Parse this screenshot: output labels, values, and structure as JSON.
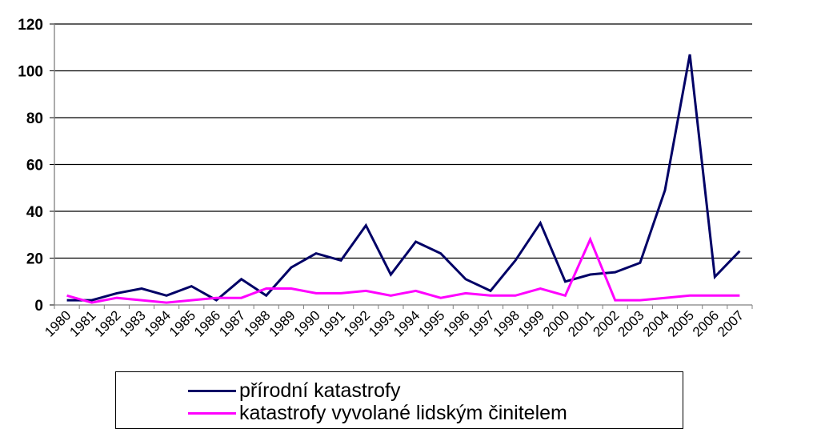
{
  "chart_data": {
    "type": "line",
    "title": "",
    "xlabel": "",
    "ylabel": "",
    "categories": [
      "1980",
      "1981",
      "1982",
      "1983",
      "1984",
      "1985",
      "1986",
      "1987",
      "1988",
      "1989",
      "1990",
      "1991",
      "1992",
      "1993",
      "1994",
      "1995",
      "1996",
      "1997",
      "1998",
      "1999",
      "2000",
      "2001",
      "2002",
      "2003",
      "2004",
      "2005",
      "2006",
      "2007"
    ],
    "ylim": [
      0,
      120
    ],
    "yticks": [
      "0",
      "20",
      "40",
      "60",
      "80",
      "100",
      "120"
    ],
    "grid": true,
    "legend_position": "bottom",
    "series": [
      {
        "name": "přírodní katastrofy",
        "color": "#000066",
        "values": [
          2,
          2,
          5,
          7,
          4,
          8,
          2,
          11,
          4,
          16,
          22,
          19,
          34,
          13,
          27,
          22,
          11,
          6,
          19,
          35,
          10,
          13,
          14,
          18,
          49,
          107,
          12,
          23
        ]
      },
      {
        "name": "katastrofy vyvolané lidským činitelem",
        "color": "#ff00ff",
        "values": [
          4,
          1,
          3,
          2,
          1,
          2,
          3,
          3,
          7,
          7,
          5,
          5,
          6,
          4,
          6,
          3,
          5,
          4,
          4,
          7,
          4,
          28,
          2,
          2,
          3,
          4,
          4,
          4
        ]
      }
    ]
  }
}
